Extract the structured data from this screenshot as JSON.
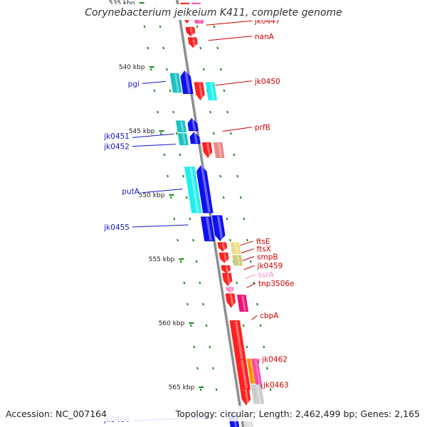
{
  "title": "Corynebacterium jeikeium K411, complete genome",
  "accession": "Accession: NC_007164",
  "topology": "Topology: circular; Length: 2,462,499 bp; Genes: 2,165",
  "colors": {
    "backbone": "#8a8a8a",
    "tick": "#1a8a1a",
    "left_label": "#1515c8",
    "right_label": "#d00000",
    "rna_label": "#ff88cc"
  },
  "scale_ticks": [
    {
      "label": "535 kbp",
      "kbp": 535
    },
    {
      "label": "540 kbp",
      "kbp": 540
    },
    {
      "label": "545 kbp",
      "kbp": 545
    },
    {
      "label": "550 kbp",
      "kbp": 550
    },
    {
      "label": "555 kbp",
      "kbp": 555
    },
    {
      "label": "560 kbp",
      "kbp": 560
    },
    {
      "label": "565 kbp",
      "kbp": 565
    }
  ],
  "genes_left": [
    {
      "label": "pgi",
      "kbp": 541.3
    },
    {
      "label": "jk0451",
      "kbp": 545.4
    },
    {
      "label": "jk0452",
      "kbp": 546.2
    },
    {
      "label": "putA",
      "kbp": 549.7
    },
    {
      "label": "jk0455",
      "kbp": 552.5
    },
    {
      "label": "jk0464",
      "kbp": 567.5
    }
  ],
  "genes_right": [
    {
      "label": "jk0447",
      "kbp": 536.4,
      "type": "protein"
    },
    {
      "label": "nanA",
      "kbp": 537.6,
      "type": "protein"
    },
    {
      "label": "jk0450",
      "kbp": 541.1,
      "type": "protein"
    },
    {
      "label": "prfB",
      "kbp": 544.7,
      "type": "protein"
    },
    {
      "label": "ftsE",
      "kbp": 553.6,
      "type": "protein"
    },
    {
      "label": "ftsX",
      "kbp": 554.2,
      "type": "protein"
    },
    {
      "label": "smpB",
      "kbp": 554.8,
      "type": "protein"
    },
    {
      "label": "jk0459",
      "kbp": 555.5,
      "type": "protein"
    },
    {
      "label": "ssrA",
      "kbp": 556.2,
      "type": "rna"
    },
    {
      "label": "tnp3506e",
      "kbp": 556.9,
      "type": "protein"
    },
    {
      "label": "cbpA",
      "kbp": 559.4,
      "type": "protein"
    },
    {
      "label": "jk0462",
      "kbp": 562.8,
      "type": "protein"
    },
    {
      "label": "jk0463",
      "kbp": 564.8,
      "type": "protein"
    }
  ]
}
